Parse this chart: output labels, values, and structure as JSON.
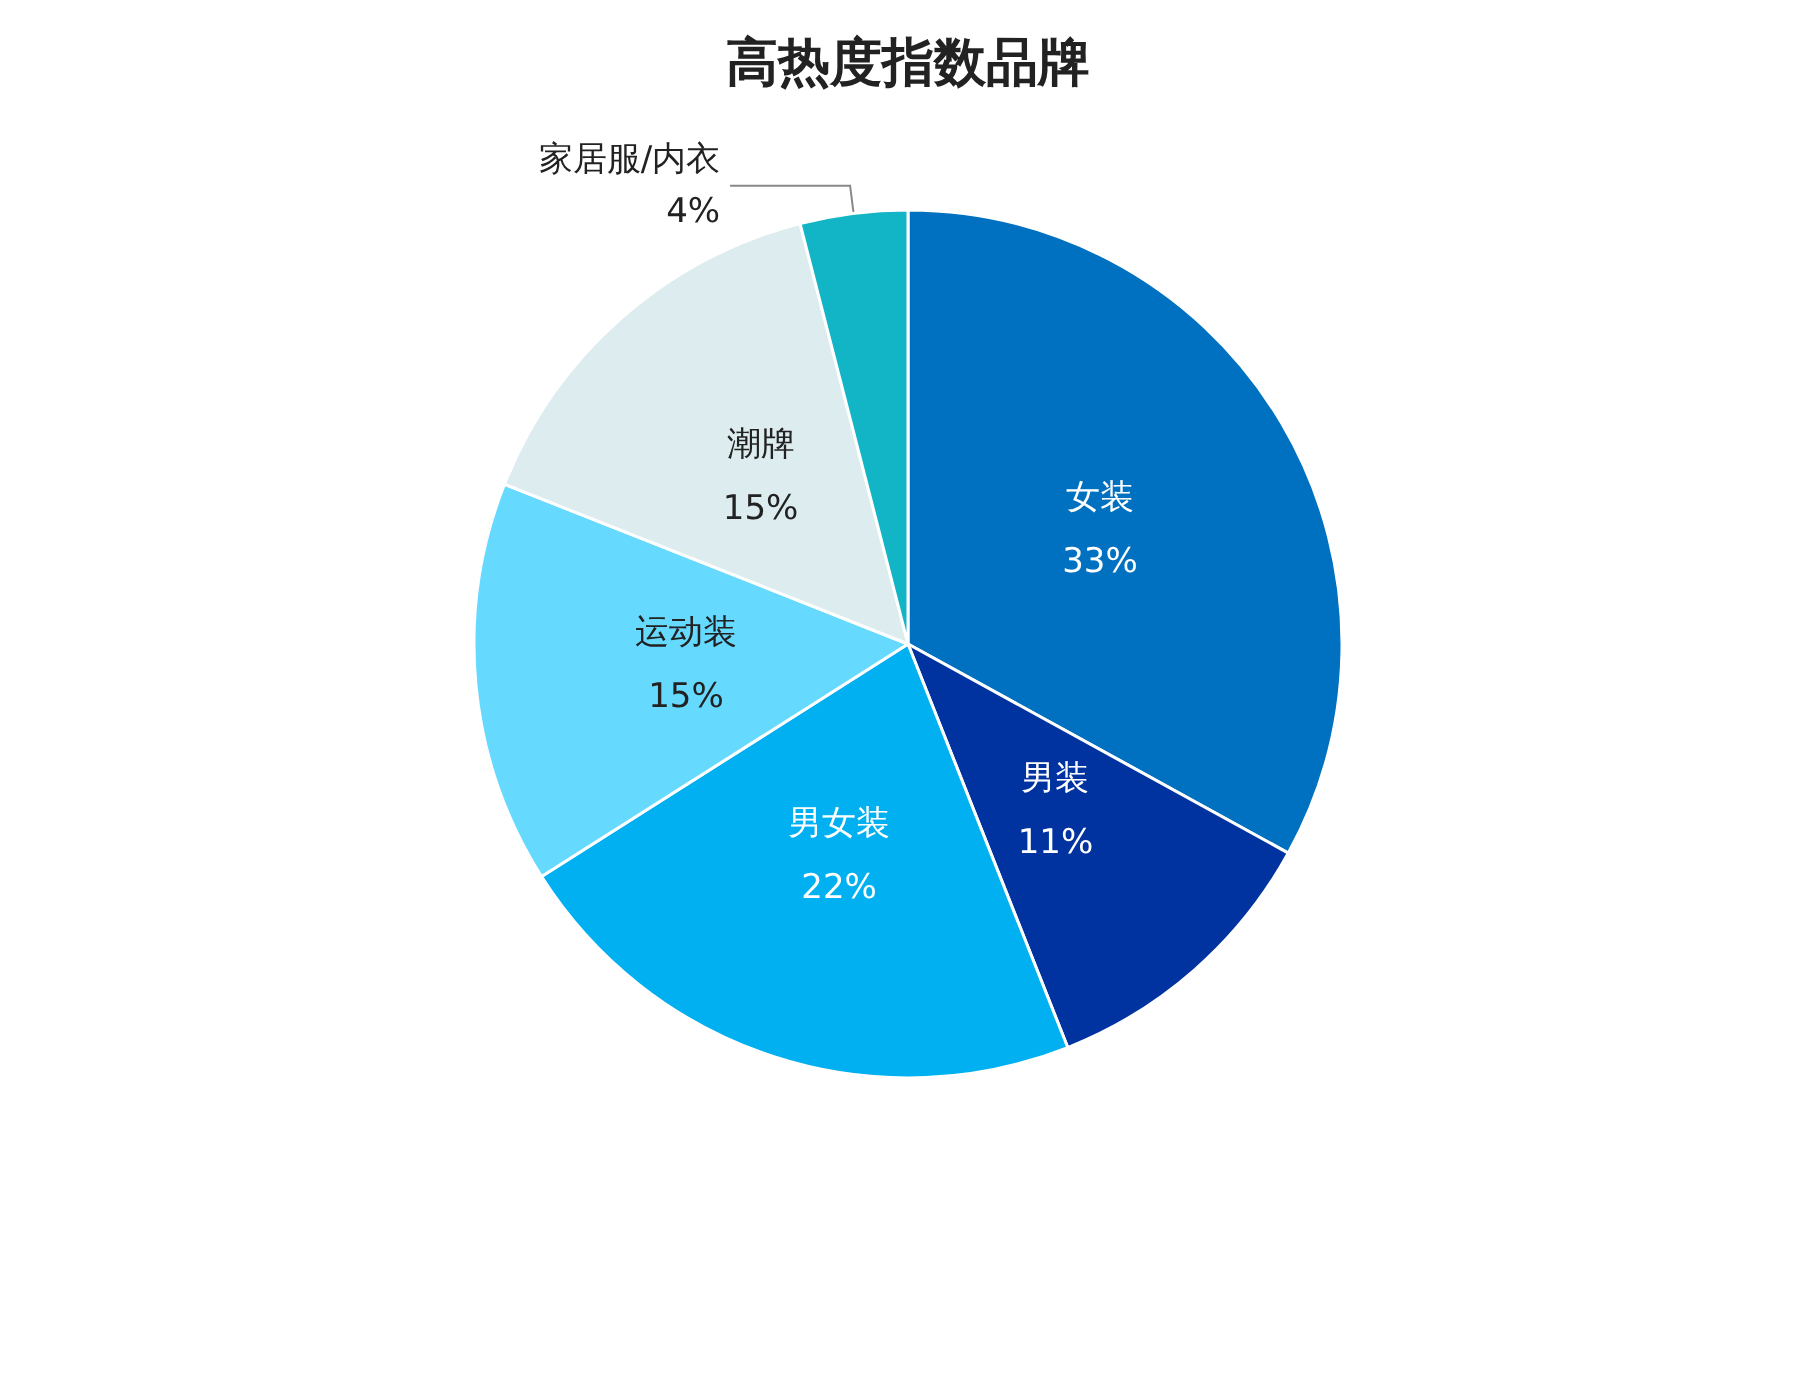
{
  "chart_data": {
    "type": "pie",
    "title": "高热度指数品牌",
    "categories": [
      "女装",
      "男装",
      "男女装",
      "运动装",
      "潮牌",
      "家居服/内衣"
    ],
    "values": [
      33,
      11,
      22,
      15,
      15,
      4
    ],
    "colors": [
      "#0070c0",
      "#0033a0",
      "#00b0f0",
      "#66d9ff",
      "#dcecef",
      "#12b5c5"
    ],
    "value_labels": [
      "33%",
      "11%",
      "22%",
      "15%",
      "15%",
      "4%"
    ],
    "legend": false
  }
}
